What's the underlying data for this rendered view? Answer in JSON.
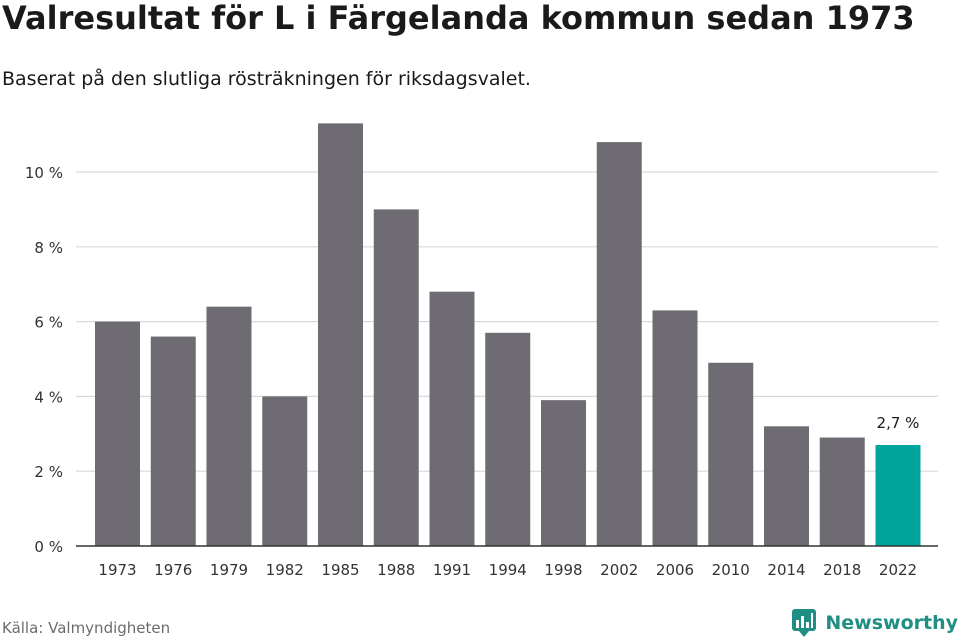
{
  "header": {
    "title": "Valresultat för L i Färgelanda kommun sedan 1973",
    "subtitle": "Baserat på den slutliga rösträkningen för riksdagsvalet."
  },
  "footer": {
    "source": "Källa: Valmyndigheten",
    "brand": "Newsworthy",
    "brand_icon": "bar-chart-logo-icon"
  },
  "colors": {
    "bar": "#6e6c72",
    "highlight": "#00a49a",
    "grid": "#d9d9d9",
    "axis": "#333333",
    "brand": "#1f8f84"
  },
  "chart_data": {
    "type": "bar",
    "categories": [
      "1973",
      "1976",
      "1979",
      "1982",
      "1985",
      "1988",
      "1991",
      "1994",
      "1998",
      "2002",
      "2006",
      "2010",
      "2014",
      "2018",
      "2022"
    ],
    "values": [
      6.0,
      5.6,
      6.4,
      4.0,
      11.3,
      9.0,
      6.8,
      5.7,
      3.9,
      10.8,
      6.3,
      4.9,
      3.2,
      2.9,
      2.7
    ],
    "highlight_index": 14,
    "highlight_label": "2,7 %",
    "yticks": [
      0,
      2,
      4,
      6,
      8,
      10
    ],
    "ytick_labels": [
      "0 %",
      "2 %",
      "4 %",
      "6 %",
      "8 %",
      "10 %"
    ],
    "ylim": [
      0,
      11.3
    ],
    "grid": true,
    "xlabel": "",
    "ylabel": ""
  }
}
